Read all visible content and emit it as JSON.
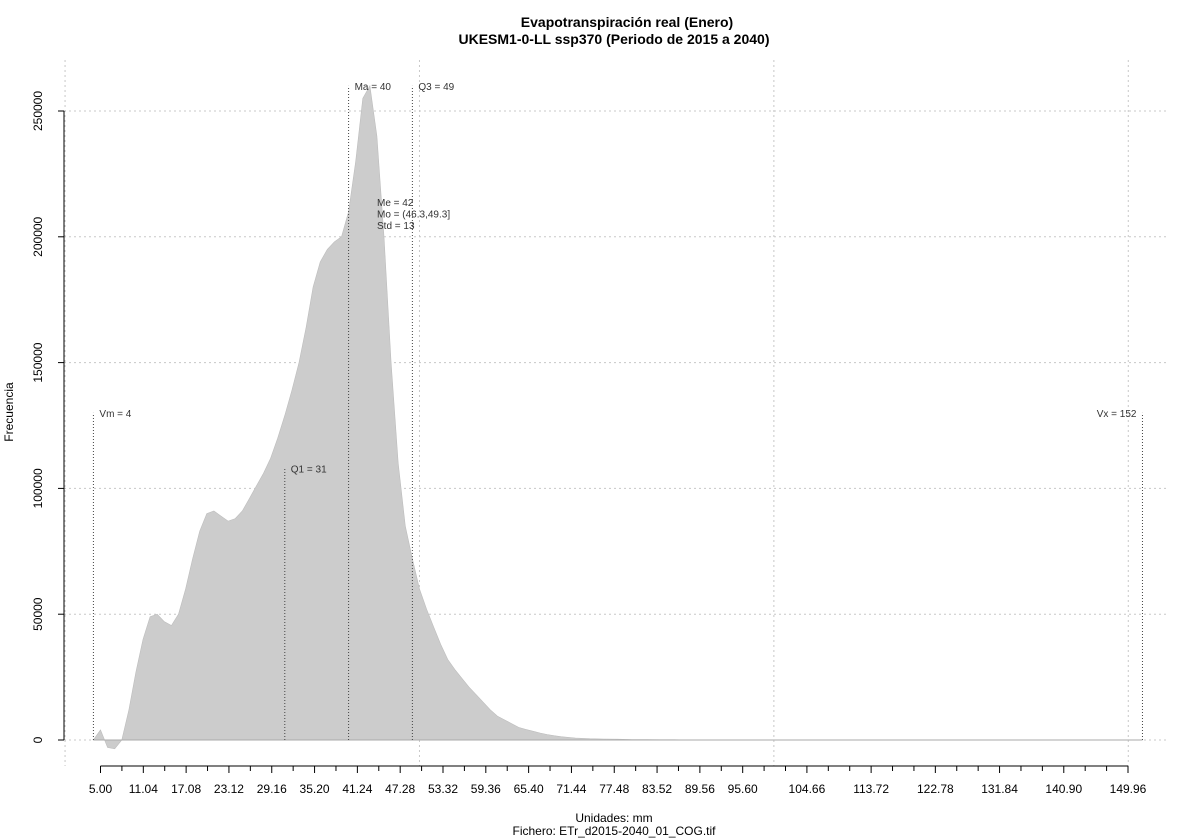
{
  "chart_data": {
    "type": "area",
    "title": "Evapotranspiración real (Enero)",
    "subtitle": "UKESM1-0-LL ssp370 (Periodo de 2015 a 2040)",
    "xlabel": "Unidades: mm",
    "ylabel": "Frecuencia",
    "footer": "Fichero: ETr_d2015-2040_01_COG.tif",
    "xlim": [
      0,
      152
    ],
    "ylim": [
      0,
      260000
    ],
    "grid": true,
    "x_ticks": [
      "5.00",
      "11.04",
      "17.08",
      "23.12",
      "29.16",
      "35.20",
      "41.24",
      "47.28",
      "53.32",
      "59.36",
      "65.40",
      "71.44",
      "77.48",
      "83.52",
      "89.56",
      "95.60",
      "104.66",
      "113.72",
      "122.78",
      "131.84",
      "140.90",
      "149.96"
    ],
    "x_tick_values": [
      5.0,
      11.04,
      17.08,
      23.12,
      29.16,
      35.2,
      41.24,
      47.28,
      53.32,
      59.36,
      65.4,
      71.44,
      77.48,
      83.52,
      89.56,
      95.6,
      104.66,
      113.72,
      122.78,
      131.84,
      140.9,
      149.96
    ],
    "x_minor_ticks": [
      8.02,
      14.06,
      20.1,
      26.14,
      32.18,
      38.22,
      44.26,
      50.3,
      56.34,
      62.38,
      68.42,
      74.46,
      80.5,
      86.54,
      92.58,
      98.62,
      101.64,
      107.68,
      110.7,
      116.74,
      119.76,
      125.8,
      128.82,
      134.86,
      137.88,
      143.92,
      146.94
    ],
    "y_ticks": [
      "0",
      "50000",
      "100000",
      "150000",
      "200000",
      "250000"
    ],
    "y_tick_values": [
      0,
      50000,
      100000,
      150000,
      200000,
      250000
    ],
    "x": [
      4,
      5,
      6,
      7,
      8,
      9,
      10,
      11,
      12,
      13,
      14,
      15,
      16,
      17,
      18,
      19,
      20,
      21,
      22,
      23,
      24,
      25,
      26,
      27,
      28,
      29,
      30,
      31,
      32,
      33,
      34,
      35,
      36,
      37,
      38,
      39,
      40,
      41,
      42,
      43,
      44,
      45,
      46,
      47,
      48,
      49,
      50,
      51,
      52,
      53,
      54,
      55,
      56,
      57,
      58,
      59,
      60,
      61,
      62,
      63,
      64,
      65,
      66,
      67,
      68,
      69,
      70,
      72,
      74,
      76,
      78,
      80,
      82,
      84,
      86,
      88,
      90,
      92,
      95,
      100,
      110,
      120,
      130,
      140,
      150,
      152
    ],
    "values": [
      0,
      4000,
      -3000,
      -3500,
      0,
      12000,
      27000,
      40000,
      49000,
      50000,
      47000,
      45500,
      50000,
      60000,
      72000,
      83000,
      90000,
      91000,
      89000,
      87000,
      88000,
      91000,
      96000,
      101000,
      106000,
      112000,
      120000,
      129000,
      139000,
      150000,
      164000,
      180000,
      190000,
      195000,
      198000,
      200000,
      210000,
      230000,
      255000,
      260000,
      240000,
      200000,
      150000,
      110000,
      85000,
      72000,
      60000,
      52000,
      45000,
      38000,
      32000,
      28000,
      24500,
      21000,
      18000,
      15000,
      12000,
      9500,
      8000,
      6500,
      5000,
      4200,
      3500,
      2800,
      2200,
      1700,
      1300,
      800,
      500,
      400,
      300,
      200,
      200,
      100,
      100,
      0,
      0,
      0,
      0,
      0,
      0,
      0,
      0,
      0,
      0,
      0
    ],
    "stats": [
      {
        "label": "Vm = 4",
        "x": 4,
        "top": 130000
      },
      {
        "label": "Q1 = 31",
        "x": 31,
        "top": 108000
      },
      {
        "label": "Ma = 40",
        "x": 40,
        "top": 260000
      },
      {
        "label": "Q3 = 49",
        "x": 49,
        "top": 260000
      },
      {
        "label": "Vx = 152",
        "x": 152,
        "top": 130000
      }
    ],
    "stat_box": [
      "Me = 42",
      "Mo = (46.3,49.3]",
      "Std = 13"
    ],
    "fill_color": "#cccccc",
    "grid_color": "#c8c8c8"
  }
}
